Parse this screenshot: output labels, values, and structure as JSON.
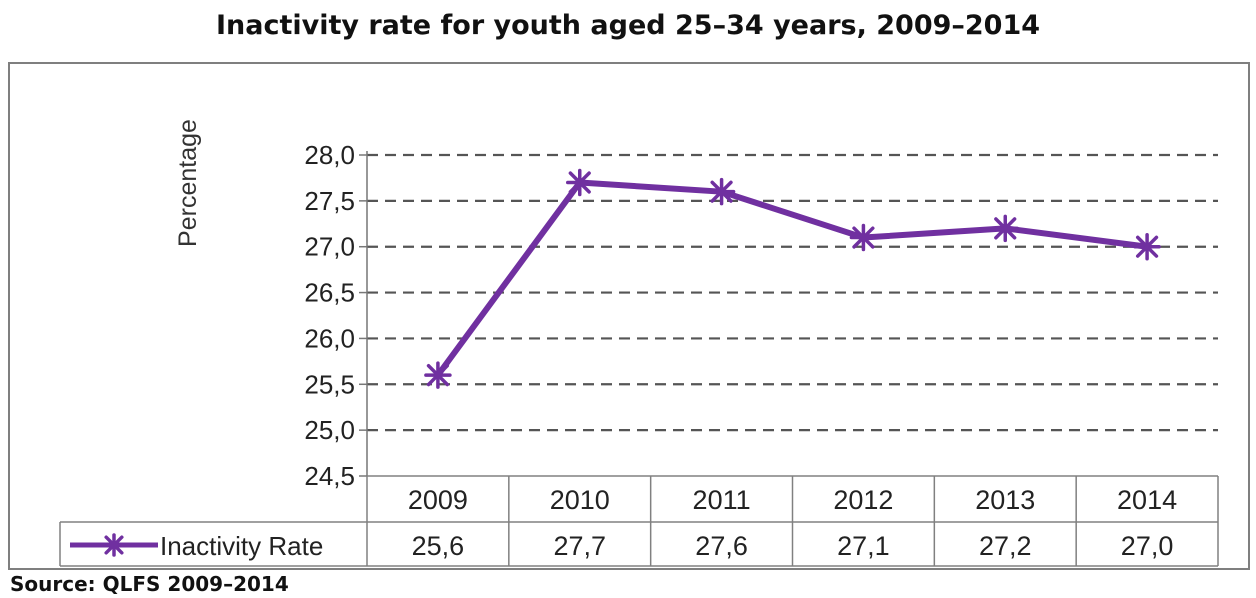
{
  "chart_data": {
    "type": "line",
    "title": "Inactivity rate for youth aged 25–34 years, 2009–2014",
    "ylabel": "Percentage",
    "xlabel": "",
    "categories": [
      "2009",
      "2010",
      "2011",
      "2012",
      "2013",
      "2014"
    ],
    "series": [
      {
        "name": "Inactivity Rate",
        "values": [
          25.6,
          27.7,
          27.6,
          27.1,
          27.2,
          27.0
        ],
        "value_labels": [
          "25,6",
          "27,7",
          "27,6",
          "27,1",
          "27,2",
          "27,0"
        ],
        "color": "#7030a0",
        "marker": "asterisk"
      }
    ],
    "ylim": [
      24.5,
      28.0
    ],
    "yticks": [
      24.5,
      25.0,
      25.5,
      26.0,
      26.5,
      27.0,
      27.5,
      28.0
    ],
    "ytick_labels": [
      "24,5",
      "25,0",
      "25,5",
      "26,0",
      "26,5",
      "27,0",
      "27,5",
      "28,0"
    ],
    "grid": "horizontal-dashed",
    "legend": "data-table",
    "source": "Source: QLFS 2009–2014"
  }
}
